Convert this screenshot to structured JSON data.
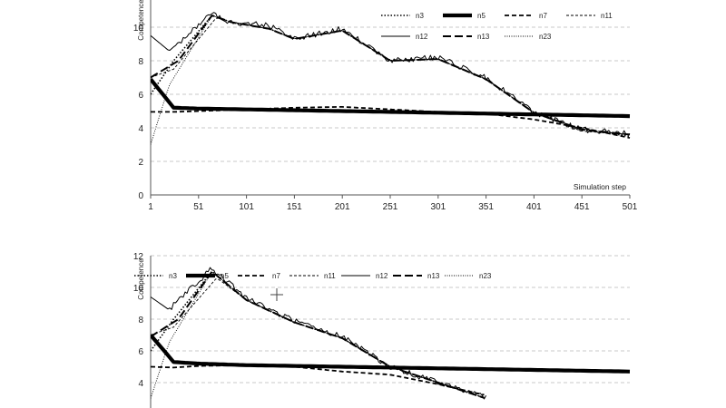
{
  "chart_data": [
    {
      "type": "line",
      "ylabel": "Competence",
      "xlabel": "Simulation step",
      "ylim": [
        0,
        11
      ],
      "xlim": [
        1,
        501
      ],
      "y_ticks": [
        0,
        2,
        4,
        6,
        8,
        10
      ],
      "x_ticks": [
        1,
        51,
        101,
        151,
        201,
        251,
        301,
        351,
        401,
        451,
        501
      ],
      "grid": "horizontal dashed",
      "legend_position": "top-right",
      "legend": [
        "n3",
        "n5",
        "n7",
        "n11",
        "n12",
        "n13",
        "n23"
      ],
      "series": [
        {
          "name": "n3",
          "style": "dotted",
          "x": [
            1,
            25,
            65,
            85,
            125,
            151,
            201,
            251,
            301,
            351,
            401,
            451,
            501
          ],
          "y": [
            6.0,
            8.0,
            10.7,
            10.3,
            9.9,
            9.3,
            9.8,
            8.0,
            8.1,
            6.9,
            4.9,
            3.9,
            3.5
          ]
        },
        {
          "name": "n5",
          "style": "thick",
          "x": [
            1,
            25,
            51,
            101,
            151,
            201,
            251,
            301,
            351,
            401,
            451,
            501
          ],
          "y": [
            6.9,
            5.2,
            5.15,
            5.1,
            5.05,
            5.0,
            4.95,
            4.9,
            4.85,
            4.8,
            4.75,
            4.7
          ]
        },
        {
          "name": "n7",
          "style": "dashed",
          "x": [
            1,
            25,
            51,
            101,
            151,
            201,
            251,
            301,
            351,
            401,
            451,
            501
          ],
          "y": [
            4.95,
            4.95,
            5.0,
            5.1,
            5.2,
            5.25,
            5.1,
            4.95,
            4.85,
            4.5,
            4.0,
            3.4
          ]
        },
        {
          "name": "n11",
          "style": "thin-dashed",
          "x": [
            1,
            25,
            70,
            85,
            125,
            151,
            201,
            251,
            301,
            351,
            401,
            451,
            501
          ],
          "y": [
            7.0,
            7.5,
            10.6,
            10.3,
            9.9,
            9.3,
            9.8,
            8.0,
            8.1,
            6.9,
            4.9,
            3.8,
            3.6
          ]
        },
        {
          "name": "n12",
          "style": "solid",
          "x": [
            1,
            20,
            65,
            85,
            125,
            151,
            201,
            251,
            301,
            351,
            401,
            451,
            501
          ],
          "y": [
            9.5,
            8.6,
            10.8,
            10.3,
            10.1,
            9.3,
            9.9,
            8.0,
            8.2,
            7.0,
            4.9,
            3.9,
            3.7
          ]
        },
        {
          "name": "n13",
          "style": "long-dash",
          "x": [
            1,
            30,
            65,
            85,
            125,
            151,
            201,
            251,
            301,
            351,
            401,
            451,
            501
          ],
          "y": [
            7.0,
            8.0,
            10.7,
            10.3,
            9.9,
            9.3,
            9.8,
            8.0,
            8.1,
            6.9,
            4.9,
            3.9,
            3.6
          ]
        },
        {
          "name": "n23",
          "style": "thin-dotted",
          "x": [
            1,
            20,
            65,
            85,
            125,
            151,
            201,
            251,
            301,
            351,
            401,
            451,
            501
          ],
          "y": [
            3.0,
            6.5,
            10.7,
            10.3,
            9.9,
            9.3,
            9.8,
            8.0,
            8.1,
            6.9,
            4.9,
            3.9,
            3.6
          ]
        }
      ]
    },
    {
      "type": "line",
      "ylabel": "Competence",
      "ylim": [
        3.5,
        12
      ],
      "y_ticks": [
        4,
        6,
        8,
        10,
        12
      ],
      "xlim": [
        1,
        501
      ],
      "grid": "horizontal dashed",
      "legend_position": "top",
      "legend": [
        "n3",
        "n5",
        "n7",
        "n11",
        "n12",
        "n13",
        "n23"
      ],
      "series": [
        {
          "name": "n3",
          "style": "dotted",
          "x": [
            1,
            25,
            65,
            101,
            151,
            201,
            251,
            301,
            351
          ],
          "y": [
            6.0,
            8.0,
            11.0,
            9.2,
            7.8,
            6.8,
            5.0,
            4.0,
            3.0
          ]
        },
        {
          "name": "n5",
          "style": "thick",
          "x": [
            1,
            25,
            51,
            101,
            151,
            201,
            251,
            301,
            351,
            401,
            451,
            501
          ],
          "y": [
            7.0,
            5.3,
            5.2,
            5.1,
            5.05,
            5.0,
            4.95,
            4.9,
            4.85,
            4.8,
            4.75,
            4.7
          ]
        },
        {
          "name": "n7",
          "style": "dashed",
          "x": [
            1,
            25,
            51,
            101,
            151,
            201,
            251,
            301,
            351
          ],
          "y": [
            5.0,
            4.95,
            5.05,
            5.1,
            5.0,
            4.7,
            4.5,
            3.9,
            3.2
          ]
        },
        {
          "name": "n11",
          "style": "thin-dashed",
          "x": [
            1,
            25,
            70,
            101,
            151,
            201,
            251,
            301,
            351
          ],
          "y": [
            7.0,
            7.5,
            10.6,
            9.2,
            7.8,
            6.8,
            5.0,
            4.0,
            3.0
          ]
        },
        {
          "name": "n12",
          "style": "solid",
          "x": [
            1,
            20,
            65,
            101,
            151,
            201,
            251,
            301,
            351
          ],
          "y": [
            9.4,
            8.6,
            11.2,
            9.3,
            7.9,
            6.9,
            5.0,
            4.0,
            3.1
          ]
        },
        {
          "name": "n13",
          "style": "long-dash",
          "x": [
            1,
            30,
            65,
            101,
            151,
            201,
            251,
            301,
            351
          ],
          "y": [
            6.9,
            8.0,
            11.0,
            9.2,
            7.8,
            6.8,
            5.0,
            4.0,
            3.0
          ]
        },
        {
          "name": "n23",
          "style": "thin-dotted",
          "x": [
            1,
            20,
            65,
            101,
            151,
            201,
            251,
            301,
            351
          ],
          "y": [
            3.0,
            6.5,
            11.0,
            9.2,
            7.8,
            6.8,
            5.0,
            4.0,
            3.0
          ]
        }
      ]
    }
  ]
}
